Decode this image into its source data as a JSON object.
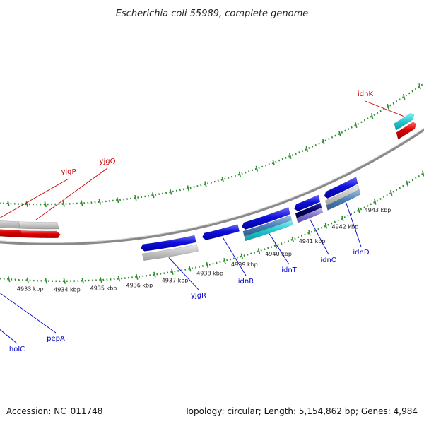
{
  "title": "Escherichia coli 55989, complete genome",
  "footer": {
    "accession": "Accession: NC_011748",
    "summary": "Topology: circular; Length: 5,154,862 bp; Genes: 4,984"
  },
  "colors": {
    "backbone": "#8a8a8a",
    "ticks": "#2e8b2e",
    "forward_label": "#cc0000",
    "reverse_label": "#0000cc",
    "blue": "#1010dd",
    "gray": "#c0c0c0",
    "red": "#e00000",
    "cyan": "#20c8d0",
    "steel": "#4a80b8",
    "purple": "#8070d0",
    "magenta": "#e0208c"
  },
  "ticks": [
    {
      "label": "4933 kbp"
    },
    {
      "label": "4934 kbp"
    },
    {
      "label": "4935 kbp"
    },
    {
      "label": "4936 kbp"
    },
    {
      "label": "4937 kbp"
    },
    {
      "label": "4938 kbp"
    },
    {
      "label": "4939 kbp"
    },
    {
      "label": "4940 kbp"
    },
    {
      "label": "4941 kbp"
    },
    {
      "label": "4942 kbp"
    },
    {
      "label": "4943 kbp"
    }
  ],
  "genes": [
    {
      "name": "yjgP",
      "strand": "forward"
    },
    {
      "name": "yjgQ",
      "strand": "forward"
    },
    {
      "name": "idnK",
      "strand": "forward"
    },
    {
      "name": "holC",
      "strand": "reverse"
    },
    {
      "name": "pepA",
      "strand": "reverse"
    },
    {
      "name": "yjgR",
      "strand": "reverse"
    },
    {
      "name": "idnR",
      "strand": "reverse"
    },
    {
      "name": "idnT",
      "strand": "reverse"
    },
    {
      "name": "idnO",
      "strand": "reverse"
    },
    {
      "name": "idnD",
      "strand": "reverse"
    }
  ]
}
